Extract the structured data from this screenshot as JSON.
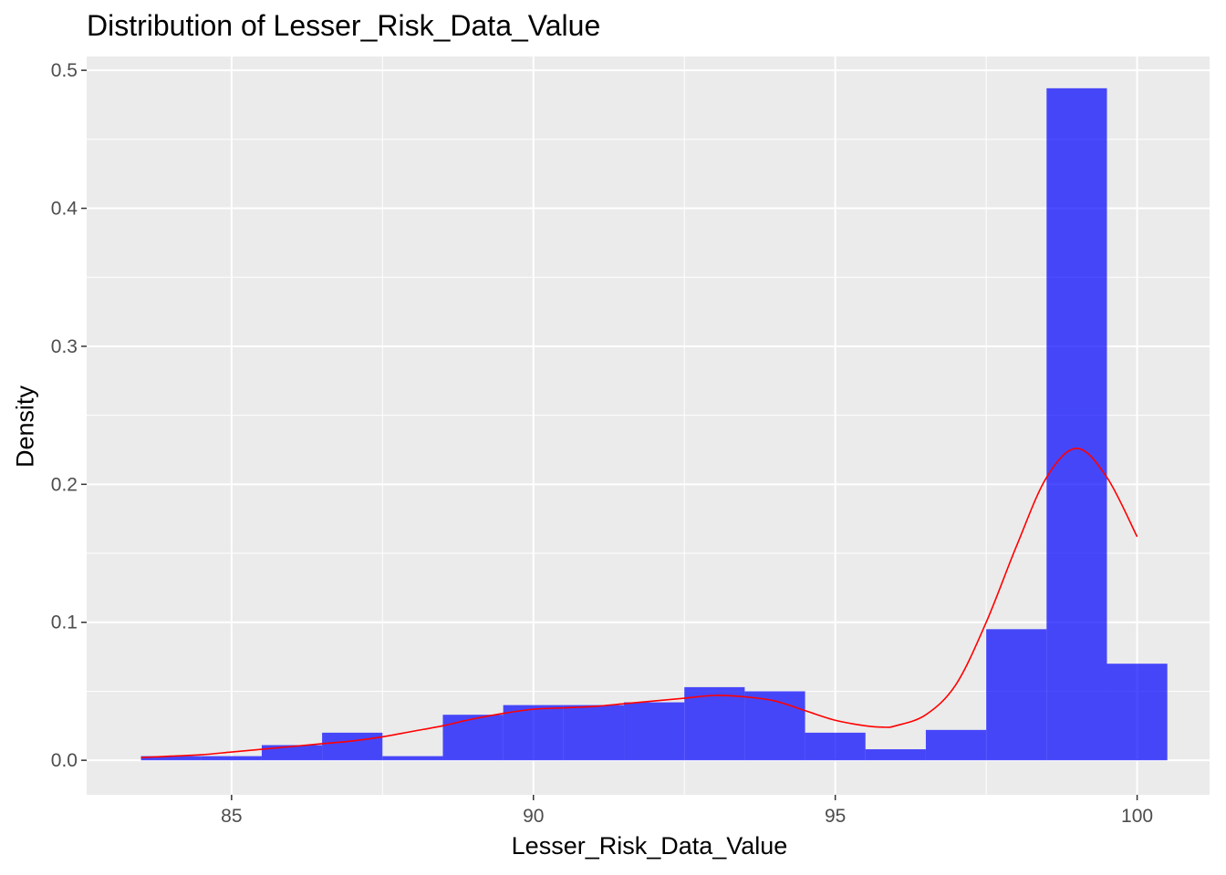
{
  "chart_data": {
    "type": "bar",
    "title": "Distribution of Lesser_Risk_Data_Value",
    "xlabel": "Lesser_Risk_Data_Value",
    "ylabel": "Density",
    "xlim": [
      82.6,
      101.2
    ],
    "ylim": [
      -0.025,
      0.51
    ],
    "x_ticks": [
      85,
      90,
      95,
      100
    ],
    "y_ticks": [
      0.0,
      0.1,
      0.2,
      0.3,
      0.4,
      0.5
    ],
    "x_tick_labels": [
      "85",
      "90",
      "95",
      "100"
    ],
    "y_tick_labels": [
      "0.0",
      "0.1",
      "0.2",
      "0.3",
      "0.4",
      "0.5"
    ],
    "grid": true,
    "histogram": {
      "bin_width": 1,
      "fill_color": "#0000ff",
      "opacity": 0.7,
      "bins": [
        {
          "x_min": 83.5,
          "x_max": 84.5,
          "density": 0.003
        },
        {
          "x_min": 84.5,
          "x_max": 85.5,
          "density": 0.003
        },
        {
          "x_min": 85.5,
          "x_max": 86.5,
          "density": 0.011
        },
        {
          "x_min": 86.5,
          "x_max": 87.5,
          "density": 0.02
        },
        {
          "x_min": 87.5,
          "x_max": 88.5,
          "density": 0.003
        },
        {
          "x_min": 88.5,
          "x_max": 89.5,
          "density": 0.033
        },
        {
          "x_min": 89.5,
          "x_max": 90.5,
          "density": 0.04
        },
        {
          "x_min": 90.5,
          "x_max": 91.5,
          "density": 0.04
        },
        {
          "x_min": 91.5,
          "x_max": 92.5,
          "density": 0.042
        },
        {
          "x_min": 92.5,
          "x_max": 93.5,
          "density": 0.053
        },
        {
          "x_min": 93.5,
          "x_max": 94.5,
          "density": 0.05
        },
        {
          "x_min": 94.5,
          "x_max": 95.5,
          "density": 0.02
        },
        {
          "x_min": 95.5,
          "x_max": 96.5,
          "density": 0.008
        },
        {
          "x_min": 96.5,
          "x_max": 97.5,
          "density": 0.022
        },
        {
          "x_min": 97.5,
          "x_max": 98.5,
          "density": 0.095
        },
        {
          "x_min": 98.5,
          "x_max": 99.5,
          "density": 0.487
        },
        {
          "x_min": 99.5,
          "x_max": 100.5,
          "density": 0.07
        }
      ]
    },
    "density_curve": {
      "color": "#ff0000",
      "points": [
        [
          83.5,
          0.002
        ],
        [
          84.0,
          0.003
        ],
        [
          84.5,
          0.004
        ],
        [
          85.0,
          0.006
        ],
        [
          85.5,
          0.008
        ],
        [
          86.0,
          0.01
        ],
        [
          86.5,
          0.012
        ],
        [
          87.0,
          0.014
        ],
        [
          87.5,
          0.017
        ],
        [
          88.0,
          0.021
        ],
        [
          88.5,
          0.025
        ],
        [
          89.0,
          0.03
        ],
        [
          89.5,
          0.034
        ],
        [
          90.0,
          0.037
        ],
        [
          90.5,
          0.038
        ],
        [
          91.0,
          0.039
        ],
        [
          91.5,
          0.041
        ],
        [
          92.0,
          0.043
        ],
        [
          92.5,
          0.045
        ],
        [
          93.0,
          0.047
        ],
        [
          93.5,
          0.046
        ],
        [
          94.0,
          0.043
        ],
        [
          94.5,
          0.036
        ],
        [
          95.0,
          0.029
        ],
        [
          95.5,
          0.025
        ],
        [
          95.8,
          0.024
        ],
        [
          96.0,
          0.025
        ],
        [
          96.5,
          0.033
        ],
        [
          97.0,
          0.055
        ],
        [
          97.5,
          0.1
        ],
        [
          98.0,
          0.155
        ],
        [
          98.5,
          0.205
        ],
        [
          99.0,
          0.226
        ],
        [
          99.5,
          0.205
        ],
        [
          100.0,
          0.162
        ]
      ]
    }
  }
}
